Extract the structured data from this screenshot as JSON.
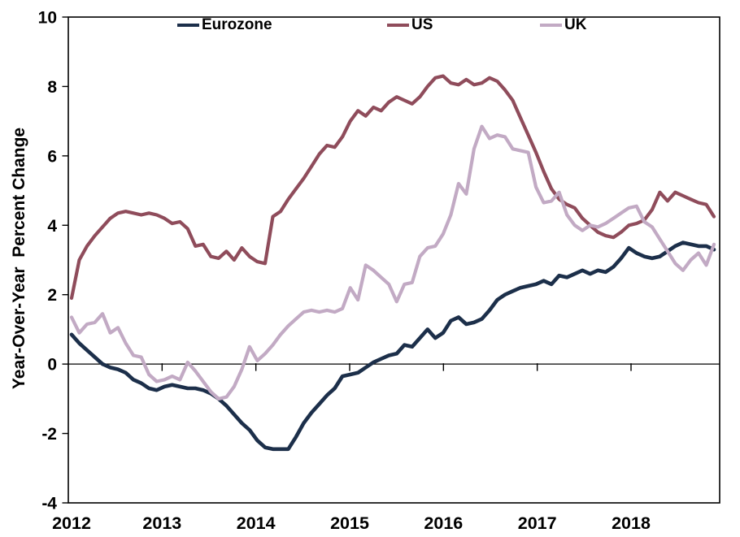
{
  "chart_data": {
    "type": "line",
    "title": "",
    "ylabel": "Year-Over-Year  Percent Change",
    "xlabel": "",
    "frequency": "monthly",
    "x_start": "2012-01",
    "x_end": "2018-12",
    "x_tick_labels": [
      "2012",
      "2013",
      "2014",
      "2015",
      "2016",
      "2017",
      "2018"
    ],
    "ylim": [
      -4,
      10
    ],
    "yticks": [
      -4,
      -2,
      0,
      2,
      4,
      6,
      8,
      10
    ],
    "grid": "off",
    "zero_line": true,
    "legend_position": "top",
    "axis_color": "#000000",
    "background_color": "#ffffff",
    "series": [
      {
        "name": "Eurozone",
        "color": "#1c2f4a",
        "values": [
          0.85,
          0.6,
          0.4,
          0.2,
          0.0,
          -0.1,
          -0.15,
          -0.25,
          -0.45,
          -0.55,
          -0.7,
          -0.75,
          -0.65,
          -0.6,
          -0.65,
          -0.7,
          -0.7,
          -0.75,
          -0.85,
          -1.0,
          -1.2,
          -1.45,
          -1.7,
          -1.9,
          -2.2,
          -2.4,
          -2.45,
          -2.45,
          -2.45,
          -2.1,
          -1.7,
          -1.4,
          -1.15,
          -0.9,
          -0.7,
          -0.35,
          -0.3,
          -0.25,
          -0.1,
          0.05,
          0.15,
          0.25,
          0.3,
          0.55,
          0.5,
          0.75,
          1.0,
          0.75,
          0.9,
          1.25,
          1.35,
          1.15,
          1.2,
          1.3,
          1.55,
          1.85,
          2.0,
          2.1,
          2.2,
          2.25,
          2.3,
          2.4,
          2.3,
          2.55,
          2.5,
          2.6,
          2.7,
          2.6,
          2.7,
          2.65,
          2.8,
          3.05,
          3.35,
          3.2,
          3.1,
          3.05,
          3.1,
          3.25,
          3.4,
          3.5,
          3.45,
          3.4,
          3.4,
          3.3
        ]
      },
      {
        "name": "US",
        "color": "#8f4c5b",
        "values": [
          1.9,
          3.0,
          3.4,
          3.7,
          3.95,
          4.2,
          4.35,
          4.4,
          4.35,
          4.3,
          4.35,
          4.3,
          4.2,
          4.05,
          4.1,
          3.9,
          3.4,
          3.45,
          3.1,
          3.05,
          3.25,
          3.0,
          3.35,
          3.1,
          2.95,
          2.9,
          4.25,
          4.4,
          4.75,
          5.05,
          5.35,
          5.7,
          6.05,
          6.3,
          6.25,
          6.55,
          7.0,
          7.3,
          7.15,
          7.4,
          7.3,
          7.55,
          7.7,
          7.6,
          7.5,
          7.7,
          8.0,
          8.25,
          8.3,
          8.1,
          8.05,
          8.2,
          8.05,
          8.1,
          8.25,
          8.15,
          7.9,
          7.6,
          7.1,
          6.6,
          6.1,
          5.55,
          5.05,
          4.75,
          4.6,
          4.5,
          4.2,
          4.0,
          3.8,
          3.7,
          3.65,
          3.8,
          4.0,
          4.05,
          4.15,
          4.45,
          4.95,
          4.7,
          4.95,
          4.85,
          4.75,
          4.65,
          4.6,
          4.25
        ]
      },
      {
        "name": "UK",
        "color": "#c2aac4",
        "values": [
          1.35,
          0.9,
          1.15,
          1.2,
          1.45,
          0.9,
          1.05,
          0.6,
          0.25,
          0.2,
          -0.3,
          -0.5,
          -0.45,
          -0.35,
          -0.45,
          0.05,
          -0.2,
          -0.5,
          -0.8,
          -1.0,
          -0.95,
          -0.65,
          -0.15,
          0.5,
          0.1,
          0.3,
          0.55,
          0.85,
          1.1,
          1.3,
          1.5,
          1.55,
          1.5,
          1.55,
          1.5,
          1.6,
          2.2,
          1.85,
          2.85,
          2.7,
          2.5,
          2.3,
          1.8,
          2.3,
          2.35,
          3.1,
          3.35,
          3.4,
          3.75,
          4.3,
          5.2,
          4.9,
          6.2,
          6.85,
          6.5,
          6.6,
          6.55,
          6.2,
          6.15,
          6.1,
          5.1,
          4.65,
          4.7,
          4.95,
          4.3,
          4.0,
          3.85,
          4.0,
          3.95,
          4.05,
          4.2,
          4.35,
          4.5,
          4.55,
          4.1,
          3.95,
          3.6,
          3.25,
          2.9,
          2.7,
          3.0,
          3.2,
          2.85,
          3.45
        ]
      }
    ]
  }
}
